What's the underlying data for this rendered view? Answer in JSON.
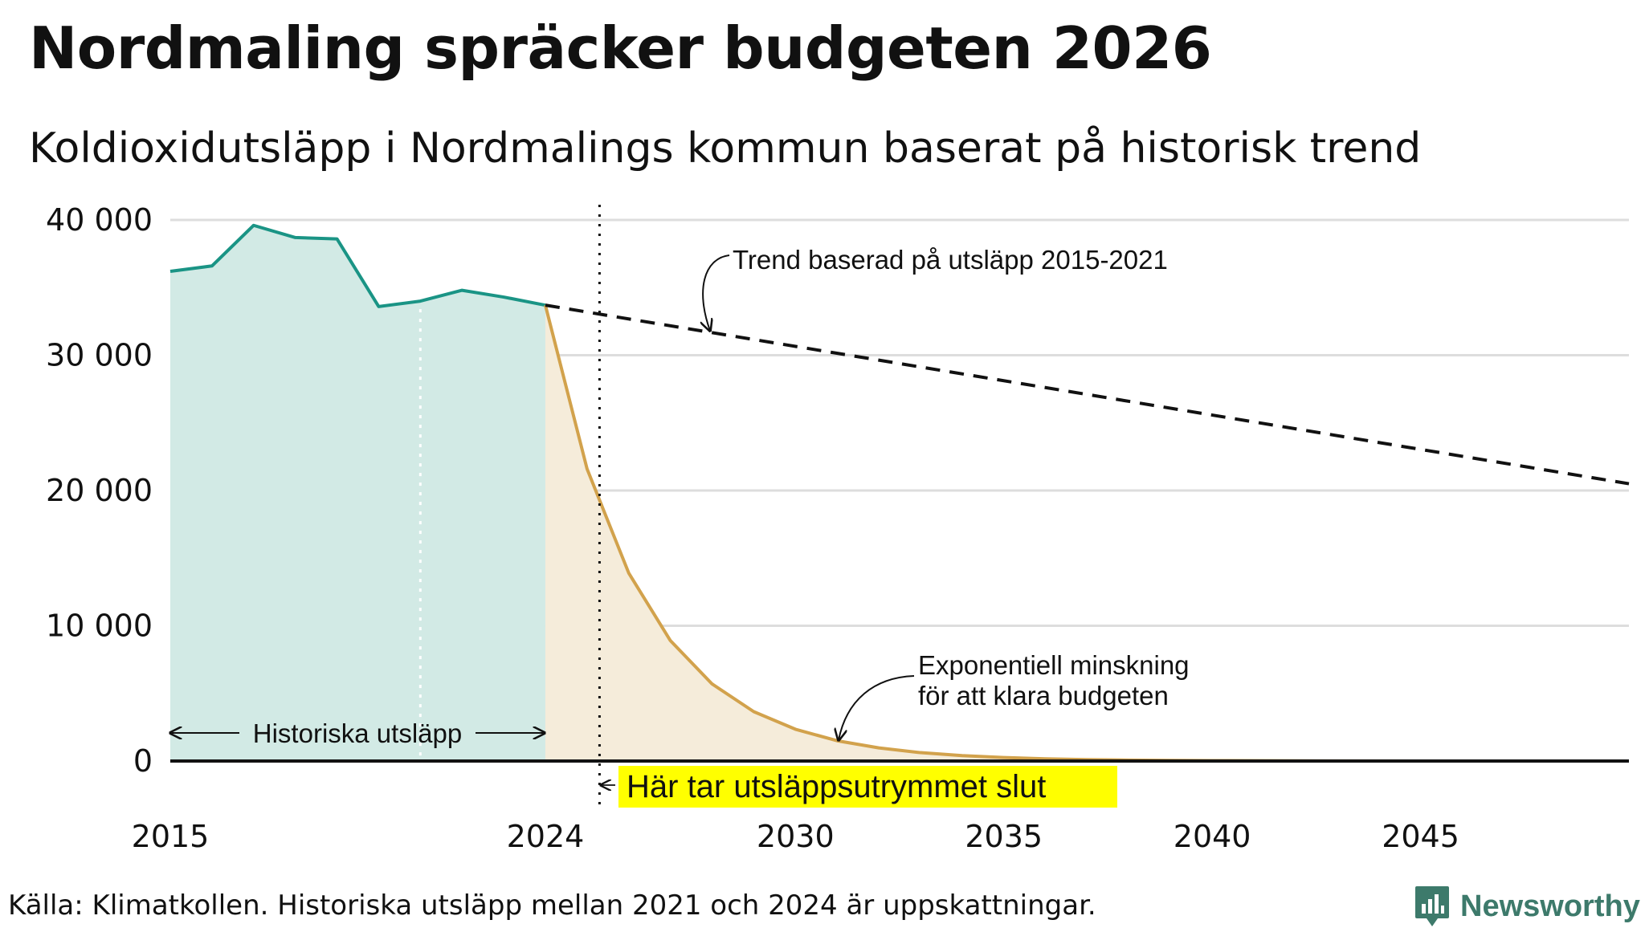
{
  "title": "Nordmaling spräcker budgeten 2026",
  "subtitle": "Koldioxidutsläpp i Nordmalings kommun baserat på historisk trend",
  "source": "Källa: Klimatkollen. Historiska utsläpp mellan 2021 och 2024 är uppskattningar.",
  "logo": {
    "text": "Newsworthy",
    "icon": "newsworthy-logo-icon"
  },
  "colors": {
    "historical": "#1a9485",
    "historical_fill": "#d2eae5",
    "budget": "#d2a24c",
    "budget_fill": "#f5ecda",
    "highlight": "#ffff00",
    "grid": "#dddddd"
  },
  "chart_data": {
    "type": "line",
    "title": "Nordmaling spräcker budgeten 2026",
    "xlim": [
      2015,
      2050
    ],
    "ylim": [
      0,
      40000
    ],
    "y_ticks": [
      0,
      10000,
      20000,
      30000,
      40000
    ],
    "y_tick_labels": [
      "0",
      "10 000",
      "20 000",
      "30 000",
      "40 000"
    ],
    "x_ticks": [
      2015,
      2024,
      2030,
      2035,
      2040,
      2045
    ],
    "x_tick_labels": [
      "2015",
      "2024",
      "2030",
      "2035",
      "2040",
      "2045"
    ],
    "series": [
      {
        "name": "Historiska utsläpp",
        "style": "solid-area",
        "x": [
          2015,
          2016,
          2017,
          2018,
          2019,
          2020,
          2021,
          2022,
          2023,
          2024
        ],
        "y": [
          36200,
          36600,
          39600,
          38700,
          38600,
          33600,
          34000,
          34800,
          34300,
          33700
        ]
      },
      {
        "name": "Exponentiell minskning för att klara budgeten",
        "style": "solid-area",
        "x": [
          2024,
          2025,
          2026,
          2027,
          2028,
          2029,
          2030,
          2031,
          2032,
          2033,
          2034,
          2035,
          2036,
          2037,
          2038,
          2039,
          2040,
          2042,
          2045,
          2050
        ],
        "y": [
          33700,
          21600,
          13900,
          8900,
          5700,
          3650,
          2350,
          1500,
          970,
          620,
          400,
          260,
          165,
          105,
          70,
          45,
          30,
          12,
          3,
          0
        ]
      },
      {
        "name": "Trend baserad på utsläpp 2015-2021",
        "style": "dashed",
        "x": [
          2024,
          2050
        ],
        "y": [
          33700,
          20500
        ]
      }
    ],
    "vertical_markers": [
      {
        "x": 2021,
        "style": "dotted-white"
      },
      {
        "x": 2025.3,
        "style": "dotted-black"
      }
    ],
    "annotations": {
      "trend_label": "Trend baserad på utsläpp 2015-2021",
      "decline_label_line1": "Exponentiell minskning",
      "decline_label_line2": "för att klara budgeten",
      "historical_label": "Historiska utsläpp",
      "budget_end_label": "Här tar utsläppsutrymmet slut"
    }
  }
}
